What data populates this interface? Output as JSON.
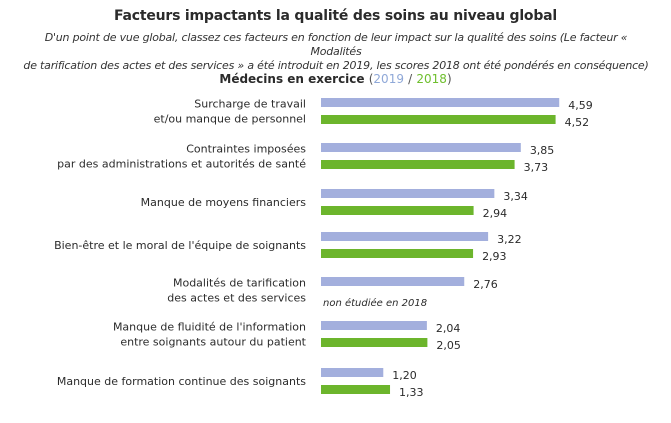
{
  "chart_data": {
    "type": "bar",
    "orientation": "horizontal",
    "title": "Facteurs impactants la qualité des soins au niveau global",
    "subtitle_line1": "D'un point de vue global, classez ces facteurs en fonction de leur impact sur la qualité des soins (Le facteur « Modalités",
    "subtitle_line2": "de tarification des actes et des services » a été introduit en 2019, les scores 2018 ont été pondérés en conséquence)",
    "panel_title": "Médecins en exercice",
    "panel_paren_open": "(",
    "panel_sep": "/",
    "panel_paren_close": ")",
    "categories": [
      [
        "Surcharge de travail",
        "et/ou manque de personnel"
      ],
      [
        "Contraintes imposées",
        "par des administrations et autorités de santé"
      ],
      [
        "Manque de moyens financiers"
      ],
      [
        "Bien-être et le moral de l'équipe de soignants"
      ],
      [
        "Modalités de tarification",
        "des actes et des services"
      ],
      [
        "Manque de fluidité de l'information",
        "entre soignants autour du patient"
      ],
      [
        "Manque de formation continue des soignants"
      ]
    ],
    "series": [
      {
        "name": "2019",
        "color": "#a3afdd",
        "values": [
          4.59,
          3.85,
          3.34,
          3.22,
          2.76,
          2.04,
          1.2
        ],
        "labels": [
          "4,59",
          "3,85",
          "3,34",
          "3,22",
          "2,76",
          "2,04",
          "1,20"
        ]
      },
      {
        "name": "2018",
        "color": "#6cb52c",
        "values": [
          4.52,
          3.73,
          2.94,
          2.93,
          null,
          2.05,
          1.33
        ],
        "labels": [
          "4,52",
          "3,73",
          "2,94",
          "2,93",
          null,
          "2,05",
          "1,33"
        ]
      }
    ],
    "annotations": [
      "non étudiée en 2018"
    ],
    "legend_colors": {
      "2019": "#8fa8d8",
      "2018": "#6fbf2e"
    },
    "xlim": [
      0,
      4.59
    ],
    "grid": false
  }
}
